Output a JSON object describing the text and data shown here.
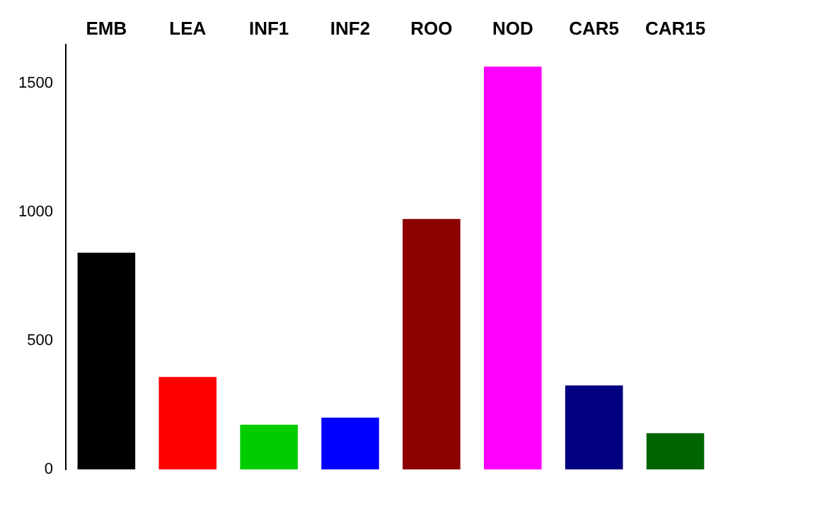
{
  "chart_data": {
    "type": "bar",
    "categories": [
      "EMB",
      "LEA",
      "INF1",
      "INF2",
      "ROO",
      "NOD",
      "CAR5",
      "CAR15"
    ],
    "values": [
      842,
      359,
      174,
      201,
      973,
      1565,
      326,
      141
    ],
    "colors": [
      "#000000",
      "#ff0000",
      "#00cd00",
      "#0000ff",
      "#8b0000",
      "#ff00ff",
      "#000080",
      "#006400"
    ],
    "ylim": [
      0,
      1650
    ],
    "yticks": [
      0,
      500,
      1000,
      1500
    ],
    "grid": false,
    "legend": false
  }
}
